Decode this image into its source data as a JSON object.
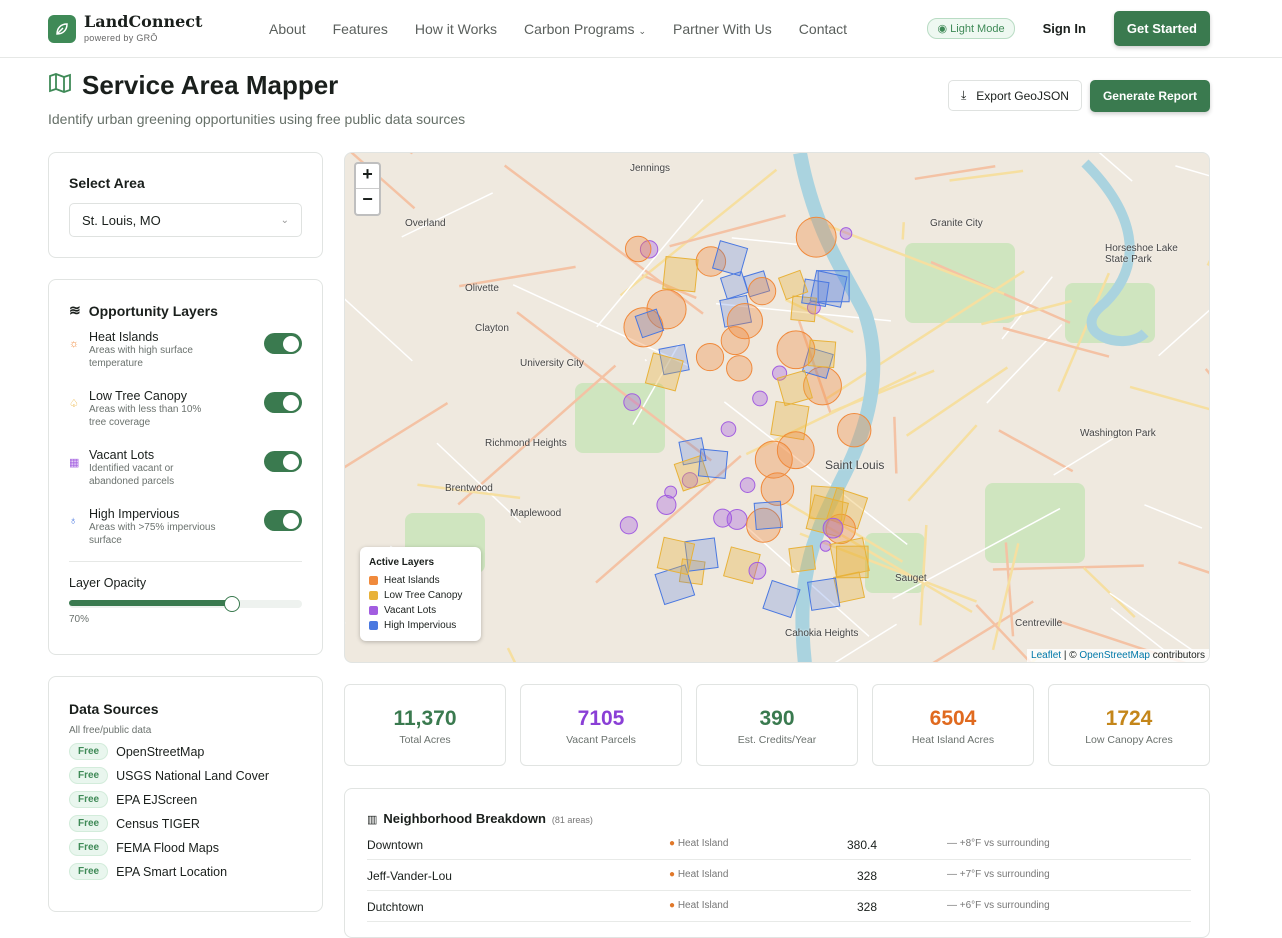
{
  "nav": {
    "brand": "LandConnect",
    "powered": "powered by GRŌ",
    "links": [
      "About",
      "Features",
      "How it Works",
      "Carbon Programs",
      "Partner With Us",
      "Contact"
    ],
    "mode": "Light Mode",
    "sign_in": "Sign In",
    "get_started": "Get Started"
  },
  "page": {
    "title": "Service Area Mapper",
    "subtitle": "Identify urban greening opportunities using free public data sources",
    "export": "Export GeoJSON",
    "report": "Generate Report"
  },
  "select_area": {
    "title": "Select Area",
    "value": "St. Louis, MO"
  },
  "layers": {
    "title": "Opportunity Layers",
    "items": [
      {
        "name": "Heat Islands",
        "desc": "Areas with high surface temperature",
        "on": true,
        "color": "#f08a3c"
      },
      {
        "name": "Low Tree Canopy",
        "desc": "Areas with less than 10% tree coverage",
        "on": true,
        "color": "#e8a823"
      },
      {
        "name": "Vacant Lots",
        "desc": "Identified vacant or abandoned parcels",
        "on": true,
        "color": "#a25de0"
      },
      {
        "name": "High Impervious",
        "desc": "Areas with >75% impervious surface",
        "on": true,
        "color": "#4a78e0"
      }
    ],
    "opacity_label": "Layer Opacity",
    "opacity": "70%",
    "opacity_value": 70
  },
  "sources": {
    "title": "Data Sources",
    "sub": "All free/public data",
    "badge": "Free",
    "items": [
      "OpenStreetMap",
      "USGS National Land Cover",
      "EPA EJScreen",
      "Census TIGER",
      "FEMA Flood Maps",
      "EPA Smart Location"
    ]
  },
  "map": {
    "zoom_in": "+",
    "zoom_out": "−",
    "legend_title": "Active Layers",
    "legend": [
      {
        "label": "Heat Islands",
        "color": "#f08a3c"
      },
      {
        "label": "Low Tree Canopy",
        "color": "#e8b23a"
      },
      {
        "label": "Vacant Lots",
        "color": "#a25de0"
      },
      {
        "label": "High Impervious",
        "color": "#4a78e0"
      }
    ],
    "attribution": {
      "leaflet": "Leaflet",
      "sep": " | © ",
      "osm": "OpenStreetMap",
      "rest": " contributors"
    },
    "places": [
      "Overland",
      "Clayton",
      "University City",
      "Saint Louis",
      "Granite City",
      "Richmond Heights",
      "Brentwood",
      "Maplewood",
      "Cahokia Heights",
      "Olivette",
      "Jennings",
      "Washington Park",
      "Centreville",
      "Sauget",
      "Horseshoe Lake State Park"
    ]
  },
  "stats": [
    {
      "value": "11,370",
      "label": "Total Acres",
      "color": "#3a7a4f"
    },
    {
      "value": "7105",
      "label": "Vacant Parcels",
      "color": "#8a3fd6"
    },
    {
      "value": "390",
      "label": "Est. Credits/Year",
      "color": "#3a7a4f"
    },
    {
      "value": "6504",
      "label": "Heat Island Acres",
      "color": "#e06a1f"
    },
    {
      "value": "1724",
      "label": "Low Canopy Acres",
      "color": "#c4861a"
    }
  ],
  "breakdown": {
    "title": "Neighborhood Breakdown",
    "count": "(81 areas)",
    "rows": [
      {
        "name": "Downtown",
        "type": "Heat Island",
        "value": "380.4",
        "note": "+8°F vs surrounding"
      },
      {
        "name": "Jeff-Vander-Lou",
        "type": "Heat Island",
        "value": "328",
        "note": "+7°F vs surrounding"
      },
      {
        "name": "Dutchtown",
        "type": "Heat Island",
        "value": "328",
        "note": "+6°F vs surrounding"
      }
    ]
  }
}
